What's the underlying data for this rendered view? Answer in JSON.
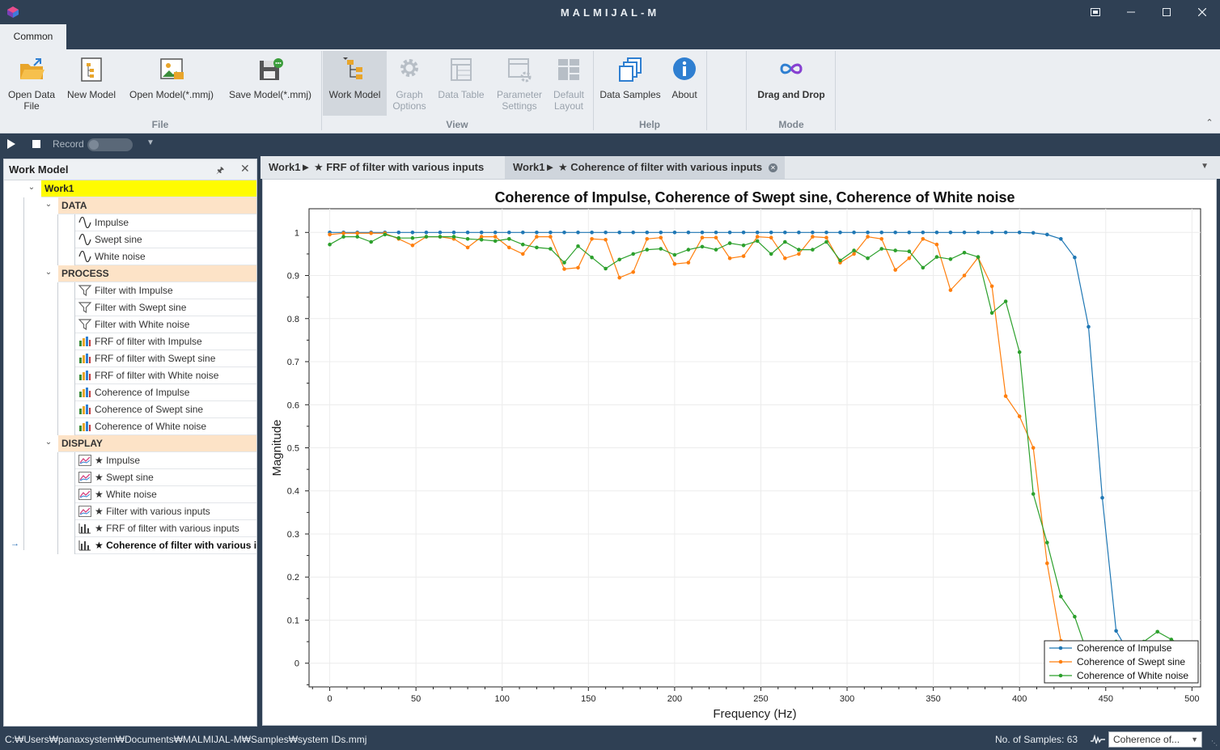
{
  "window": {
    "title": "MALMIJAL-M",
    "buttons": [
      "restore-view",
      "minimize",
      "maximize",
      "close"
    ]
  },
  "ribbon": {
    "tab": "Common",
    "groups": {
      "file": "File",
      "view": "View",
      "help": "Help",
      "mode": "Mode"
    },
    "buttons": {
      "open_data_file": [
        "Open Data",
        "File"
      ],
      "new_model": "New Model",
      "open_model": "Open Model(*.mmj)",
      "save_model": "Save Model(*.mmj)",
      "work_model": "Work Model",
      "graph_options": [
        "Graph",
        "Options"
      ],
      "data_table": "Data Table",
      "parameter_settings": [
        "Parameter",
        "Settings"
      ],
      "default_layout": [
        "Default",
        "Layout"
      ],
      "data_samples": "Data Samples",
      "about": "About",
      "drag_and_drop": "Drag and Drop"
    }
  },
  "recordbar": {
    "record_label": "Record",
    "record_on": false
  },
  "work_model_panel": {
    "title": "Work Model",
    "root": "Work1",
    "categories": {
      "data": {
        "label": "DATA",
        "items": [
          "Impulse",
          "Swept sine",
          "White noise"
        ]
      },
      "process": {
        "label": "PROCESS",
        "items": [
          {
            "label": "Filter with Impulse",
            "icon": "filter-icon"
          },
          {
            "label": "Filter with Swept sine",
            "icon": "filter-icon"
          },
          {
            "label": "Filter with White noise",
            "icon": "filter-icon"
          },
          {
            "label": "FRF of filter with Impulse",
            "icon": "bar-chart-icon"
          },
          {
            "label": "FRF of filter with Swept sine",
            "icon": "bar-chart-icon"
          },
          {
            "label": "FRF of filter with White noise",
            "icon": "bar-chart-icon"
          },
          {
            "label": "Coherence of Impulse",
            "icon": "bar-chart-icon"
          },
          {
            "label": "Coherence of Swept sine",
            "icon": "bar-chart-icon"
          },
          {
            "label": "Coherence of White noise",
            "icon": "bar-chart-icon"
          }
        ]
      },
      "display": {
        "label": "DISPLAY",
        "items": [
          {
            "label": "★ Impulse",
            "icon": "line-chart-icon"
          },
          {
            "label": "★ Swept sine",
            "icon": "line-chart-icon"
          },
          {
            "label": "★ White noise",
            "icon": "line-chart-icon"
          },
          {
            "label": "★ Filter with various inputs",
            "icon": "line-chart-icon"
          },
          {
            "label": "★ FRF of filter with various inputs",
            "icon": "bar-display-icon"
          },
          {
            "label": "★ Coherence of filter with various inputs",
            "icon": "bar-display-icon",
            "selected": true
          }
        ]
      }
    }
  },
  "doc_tabs": [
    {
      "label": "Work1► ★ FRF of filter with various inputs",
      "active": false
    },
    {
      "label": "Work1► ★ Coherence of filter with various inputs",
      "active": true
    }
  ],
  "status": {
    "path": "C:₩Users₩panaxsystem₩Documents₩MALMIJAL-M₩Samples₩system IDs.mmj",
    "samples": "No. of Samples: 63",
    "selector_value": "Coherence of..."
  },
  "colors": {
    "impulse": "#1f77b4",
    "swept": "#ff7f0e",
    "white": "#2ca02c",
    "root_highlight": "#fffb00",
    "category_bg": "#fde3c7",
    "titlebar": "#2f4054"
  },
  "chart_data": {
    "type": "line",
    "title": "Coherence of Impulse, Coherence of Swept sine, Coherence of White noise",
    "xlabel": "Frequency (Hz)",
    "ylabel": "Magnitude",
    "xlim": [
      -12,
      505
    ],
    "ylim": [
      -0.055,
      1.055
    ],
    "xticks": [
      0,
      50,
      100,
      150,
      200,
      250,
      300,
      350,
      400,
      450,
      500
    ],
    "yticks": [
      0,
      0.1,
      0.2,
      0.3,
      0.4,
      0.5,
      0.6,
      0.7,
      0.8,
      0.9,
      1
    ],
    "ytick_labels": [
      "0",
      "0.1",
      "0.2",
      "0.3",
      "0.4",
      "0.5",
      "0.6",
      "0.7",
      "0.8",
      "0.9",
      "1"
    ],
    "xtick_labels": [
      "0",
      "50",
      "100",
      "150",
      "200",
      "250",
      "300",
      "350",
      "400",
      "450",
      "500"
    ],
    "grid": true,
    "legend": "bottom-right",
    "series": [
      {
        "name": "Coherence of Impulse",
        "color": "#1f77b4",
        "x": [
          0,
          8,
          16,
          24,
          32,
          40,
          48,
          56,
          64,
          72,
          80,
          88,
          96,
          104,
          112,
          120,
          128,
          136,
          144,
          152,
          160,
          168,
          176,
          184,
          192,
          200,
          208,
          216,
          224,
          232,
          240,
          248,
          256,
          264,
          272,
          280,
          288,
          296,
          304,
          312,
          320,
          328,
          336,
          344,
          352,
          360,
          368,
          376,
          384,
          392,
          400,
          408,
          416,
          424,
          432,
          440,
          448,
          456,
          464,
          472,
          480,
          488,
          496
        ],
        "y": [
          1.0,
          1.0,
          1.0,
          1.0,
          1.0,
          1.0,
          1.0,
          1.0,
          1.0,
          1.0,
          1.0,
          1.0,
          1.0,
          1.0,
          1.0,
          1.0,
          1.0,
          1.0,
          1.0,
          1.0,
          1.0,
          1.0,
          1.0,
          1.0,
          1.0,
          1.0,
          1.0,
          1.0,
          1.0,
          1.0,
          1.0,
          1.0,
          1.0,
          1.0,
          1.0,
          1.0,
          1.0,
          1.0,
          1.0,
          1.0,
          1.0,
          1.0,
          1.0,
          1.0,
          1.0,
          1.0,
          1.0,
          1.0,
          1.0,
          1.0,
          1.0,
          0.999,
          0.995,
          0.985,
          0.942,
          0.781,
          0.384,
          0.075,
          0.02,
          0.01,
          0.005,
          0.003,
          0.002
        ]
      },
      {
        "name": "Coherence of Swept sine",
        "color": "#ff7f0e",
        "x": [
          0,
          8,
          16,
          24,
          32,
          40,
          48,
          56,
          64,
          72,
          80,
          88,
          96,
          104,
          112,
          120,
          128,
          136,
          144,
          152,
          160,
          168,
          176,
          184,
          192,
          200,
          208,
          216,
          224,
          232,
          240,
          248,
          256,
          264,
          272,
          280,
          288,
          296,
          304,
          312,
          320,
          328,
          336,
          344,
          352,
          360,
          368,
          376,
          384,
          392,
          400,
          408,
          416,
          424,
          432,
          440,
          448,
          456,
          464,
          472,
          480,
          488,
          496
        ],
        "y": [
          0.995,
          0.998,
          0.998,
          0.998,
          0.998,
          0.985,
          0.97,
          0.99,
          0.99,
          0.985,
          0.965,
          0.99,
          0.99,
          0.965,
          0.95,
          0.99,
          0.99,
          0.915,
          0.918,
          0.985,
          0.983,
          0.895,
          0.908,
          0.985,
          0.988,
          0.927,
          0.93,
          0.988,
          0.988,
          0.94,
          0.945,
          0.99,
          0.988,
          0.94,
          0.95,
          0.99,
          0.988,
          0.93,
          0.95,
          0.99,
          0.985,
          0.913,
          0.94,
          0.985,
          0.972,
          0.866,
          0.9,
          0.942,
          0.875,
          0.62,
          0.573,
          0.5,
          0.232,
          0.052,
          0.02,
          0.01,
          0.005,
          0.003,
          0.002,
          0.002,
          0.001,
          0.001,
          0.001
        ]
      },
      {
        "name": "Coherence of White noise",
        "color": "#2ca02c",
        "x": [
          0,
          8,
          16,
          24,
          32,
          40,
          48,
          56,
          64,
          72,
          80,
          88,
          96,
          104,
          112,
          120,
          128,
          136,
          144,
          152,
          160,
          168,
          176,
          184,
          192,
          200,
          208,
          216,
          224,
          232,
          240,
          248,
          256,
          264,
          272,
          280,
          288,
          296,
          304,
          312,
          320,
          328,
          336,
          344,
          352,
          360,
          368,
          376,
          384,
          392,
          400,
          408,
          416,
          424,
          432,
          440,
          448,
          456,
          464,
          472,
          480,
          488,
          496
        ],
        "y": [
          0.972,
          0.99,
          0.99,
          0.978,
          0.995,
          0.987,
          0.987,
          0.99,
          0.99,
          0.99,
          0.985,
          0.983,
          0.98,
          0.985,
          0.972,
          0.965,
          0.962,
          0.93,
          0.968,
          0.942,
          0.916,
          0.937,
          0.95,
          0.96,
          0.962,
          0.948,
          0.96,
          0.967,
          0.96,
          0.975,
          0.97,
          0.98,
          0.95,
          0.978,
          0.96,
          0.96,
          0.978,
          0.935,
          0.958,
          0.94,
          0.962,
          0.958,
          0.956,
          0.918,
          0.943,
          0.938,
          0.953,
          0.943,
          0.813,
          0.84,
          0.722,
          0.393,
          0.28,
          0.155,
          0.108,
          0.015,
          0.012,
          0.05,
          0.045,
          0.05,
          0.073,
          0.055,
          0.04
        ]
      }
    ]
  }
}
